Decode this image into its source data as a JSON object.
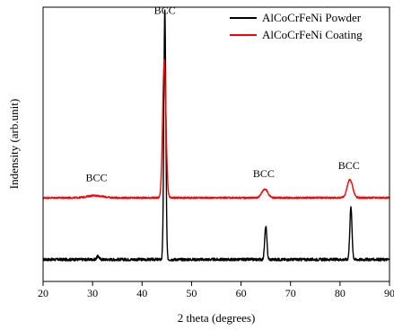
{
  "chart_data": {
    "type": "line",
    "xlabel": "2 theta (degrees)",
    "ylabel": "Indensity (arb.unit)",
    "xlim": [
      20,
      90
    ],
    "ylim": [
      0,
      100
    ],
    "x_ticks": [
      20,
      30,
      40,
      50,
      60,
      70,
      80,
      90
    ],
    "grid": false,
    "legend_position": "top-right",
    "series": [
      {
        "name": "AlCoCrFeNi Powder",
        "color": "#000000",
        "baseline": 8,
        "noise": 0.5,
        "peaks": [
          {
            "x": 31.1,
            "height": 1.2,
            "width": 0.25
          },
          {
            "x": 44.6,
            "height": 91,
            "width": 0.2
          },
          {
            "x": 65.0,
            "height": 12,
            "width": 0.22
          },
          {
            "x": 82.2,
            "height": 19,
            "width": 0.22
          }
        ]
      },
      {
        "name": "AlCoCrFeNi Coating",
        "color": "#ff0000",
        "baseline": 30.5,
        "noise": 0.3,
        "peaks": [
          {
            "x": 30.5,
            "height": 0.8,
            "width": 1.5
          },
          {
            "x": 44.5,
            "height": 50,
            "width": 0.33
          },
          {
            "x": 64.8,
            "height": 3.2,
            "width": 0.6
          },
          {
            "x": 82.0,
            "height": 6.6,
            "width": 0.55
          }
        ]
      }
    ],
    "annotations": [
      {
        "text": "BCC",
        "x": 44.6,
        "y": 97.5
      },
      {
        "text": "BCC",
        "x": 30.8,
        "y": 36.5
      },
      {
        "text": "BCC",
        "x": 64.6,
        "y": 38
      },
      {
        "text": "BCC",
        "x": 81.8,
        "y": 41
      }
    ]
  }
}
